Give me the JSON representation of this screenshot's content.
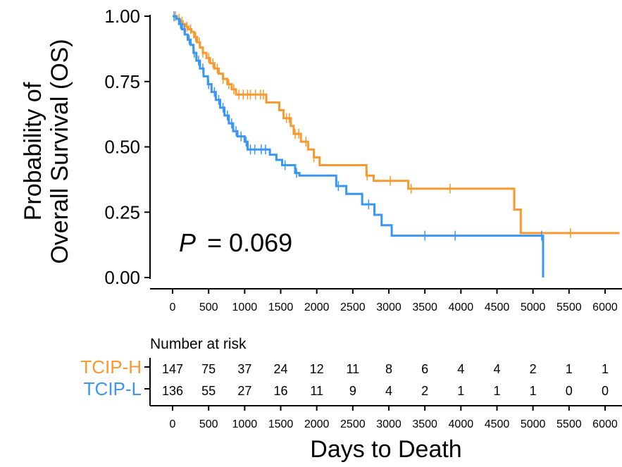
{
  "chart_data": {
    "type": "line",
    "subtype": "kaplan-meier",
    "ylabel_lines": [
      "Probability of",
      "Overall Survival (OS)"
    ],
    "xlabel": "Days to Death",
    "ylim": [
      0,
      1
    ],
    "xlim": [
      0,
      6200
    ],
    "yticks": [
      "0.00",
      "0.25",
      "0.50",
      "0.75",
      "1.00"
    ],
    "ytick_values": [
      0,
      0.25,
      0.5,
      0.75,
      1.0
    ],
    "xticks": [
      "0",
      "500",
      "1000",
      "1500",
      "2000",
      "2500",
      "3000",
      "3500",
      "4000",
      "4500",
      "5000",
      "5500",
      "6000"
    ],
    "xtick_values": [
      0,
      500,
      1000,
      1500,
      2000,
      2500,
      3000,
      3500,
      4000,
      4500,
      5000,
      5500,
      6000
    ],
    "annotation": {
      "p_symbol": "P",
      "p_text": "= 0.069"
    },
    "risk_table_title": "Number at risk",
    "series": [
      {
        "name": "TCIP-H",
        "color": "#F7992E",
        "at_risk": [
          147,
          75,
          37,
          24,
          12,
          11,
          8,
          6,
          4,
          4,
          2,
          1,
          1
        ],
        "steps": [
          [
            0,
            1.0
          ],
          [
            60,
            0.99
          ],
          [
            100,
            0.98
          ],
          [
            140,
            0.97
          ],
          [
            180,
            0.96
          ],
          [
            220,
            0.95
          ],
          [
            260,
            0.94
          ],
          [
            300,
            0.92
          ],
          [
            340,
            0.9
          ],
          [
            380,
            0.88
          ],
          [
            420,
            0.86
          ],
          [
            470,
            0.84
          ],
          [
            520,
            0.82
          ],
          [
            580,
            0.8
          ],
          [
            640,
            0.78
          ],
          [
            700,
            0.76
          ],
          [
            760,
            0.74
          ],
          [
            820,
            0.72
          ],
          [
            880,
            0.7
          ],
          [
            1300,
            0.67
          ],
          [
            1480,
            0.64
          ],
          [
            1540,
            0.61
          ],
          [
            1640,
            0.58
          ],
          [
            1680,
            0.55
          ],
          [
            1780,
            0.52
          ],
          [
            1880,
            0.49
          ],
          [
            1960,
            0.46
          ],
          [
            2040,
            0.43
          ],
          [
            2690,
            0.39
          ],
          [
            2790,
            0.37
          ],
          [
            3270,
            0.34
          ],
          [
            4740,
            0.26
          ],
          [
            4830,
            0.17
          ],
          [
            6200,
            0.17
          ]
        ],
        "censor_x": [
          40,
          90,
          130,
          200,
          250,
          320,
          370,
          420,
          500,
          560,
          620,
          700,
          780,
          850,
          920,
          980,
          1040,
          1080,
          1150,
          1220,
          1260,
          1580,
          1620,
          1700,
          1750,
          1850,
          1960,
          2700,
          3020,
          3310,
          3850,
          5520
        ]
      },
      {
        "name": "TCIP-L",
        "color": "#3A96F3",
        "at_risk": [
          136,
          55,
          27,
          16,
          11,
          9,
          4,
          2,
          1,
          1,
          1,
          0,
          0
        ],
        "steps": [
          [
            0,
            1.0
          ],
          [
            50,
            0.99
          ],
          [
            90,
            0.97
          ],
          [
            130,
            0.95
          ],
          [
            170,
            0.93
          ],
          [
            210,
            0.91
          ],
          [
            250,
            0.89
          ],
          [
            290,
            0.86
          ],
          [
            330,
            0.83
          ],
          [
            380,
            0.8
          ],
          [
            430,
            0.77
          ],
          [
            490,
            0.74
          ],
          [
            540,
            0.71
          ],
          [
            600,
            0.68
          ],
          [
            660,
            0.65
          ],
          [
            720,
            0.62
          ],
          [
            780,
            0.59
          ],
          [
            840,
            0.56
          ],
          [
            900,
            0.54
          ],
          [
            1000,
            0.52
          ],
          [
            1040,
            0.49
          ],
          [
            1350,
            0.47
          ],
          [
            1440,
            0.45
          ],
          [
            1520,
            0.43
          ],
          [
            1700,
            0.4
          ],
          [
            1760,
            0.39
          ],
          [
            2270,
            0.35
          ],
          [
            2410,
            0.32
          ],
          [
            2630,
            0.28
          ],
          [
            2800,
            0.24
          ],
          [
            2900,
            0.2
          ],
          [
            3040,
            0.16
          ],
          [
            5140,
            0.0
          ]
        ],
        "censor_x": [
          20,
          110,
          160,
          230,
          300,
          360,
          420,
          500,
          580,
          640,
          700,
          760,
          820,
          880,
          950,
          1020,
          1080,
          1140,
          1230,
          1290,
          1560,
          1720,
          2300,
          2720,
          3500,
          3920,
          5120
        ]
      }
    ]
  },
  "colors": {
    "axis": "#000000",
    "text": "#000000"
  }
}
